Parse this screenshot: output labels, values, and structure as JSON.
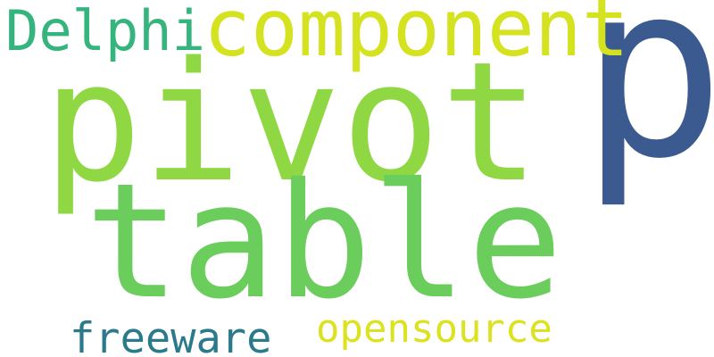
{
  "words": {
    "p": {
      "text": "p",
      "color": "#3b5a8f"
    },
    "component": {
      "text": "component",
      "color": "#d4e21f"
    },
    "delphi": {
      "text": "Delphi",
      "color": "#35b47e"
    },
    "pivot": {
      "text": "pivot",
      "color": "#8fd844"
    },
    "table": {
      "text": "table",
      "color": "#6acd5c"
    },
    "freeware": {
      "text": "freeware",
      "color": "#2b7a8c"
    },
    "opensource": {
      "text": "opensource",
      "color": "#dce21f"
    }
  }
}
